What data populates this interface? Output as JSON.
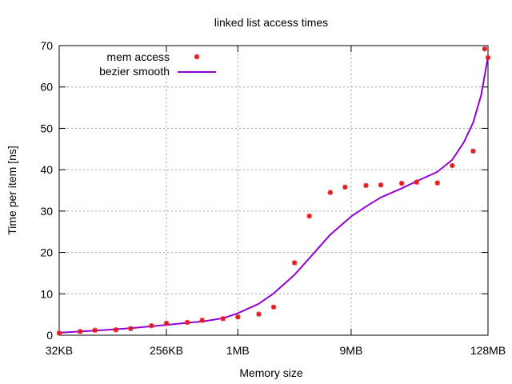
{
  "chart_data": {
    "type": "scatter",
    "title": "linked list access times",
    "xlabel": "Memory size",
    "ylabel": "Time per item [ns]",
    "x_scale": "log",
    "xlim": [
      32768,
      134217728
    ],
    "ylim": [
      0,
      70
    ],
    "xticks": [
      {
        "value": 32768,
        "label": "32KB"
      },
      {
        "value": 262144,
        "label": "256KB"
      },
      {
        "value": 1048576,
        "label": "1MB"
      },
      {
        "value": 9437184,
        "label": "9MB"
      },
      {
        "value": 134217728,
        "label": "128MB"
      }
    ],
    "yticks": [
      0,
      10,
      20,
      30,
      40,
      50,
      60,
      70
    ],
    "grid": true,
    "legend_position": "top-left",
    "series": [
      {
        "name": "mem access",
        "kind": "points",
        "color": "#e41a1c",
        "points": [
          [
            32768,
            0.5
          ],
          [
            49152,
            0.9
          ],
          [
            65536,
            1.2
          ],
          [
            98304,
            1.3
          ],
          [
            131072,
            1.6
          ],
          [
            196608,
            2.3
          ],
          [
            262144,
            2.9
          ],
          [
            393216,
            3.1
          ],
          [
            524288,
            3.6
          ],
          [
            786432,
            4.0
          ],
          [
            1048576,
            4.4
          ],
          [
            1572864,
            5.1
          ],
          [
            2097152,
            6.8
          ],
          [
            3145728,
            17.5
          ],
          [
            4194304,
            28.8
          ],
          [
            6291456,
            34.5
          ],
          [
            8388608,
            35.8
          ],
          [
            12582912,
            36.2
          ],
          [
            16777216,
            36.3
          ],
          [
            25165824,
            36.7
          ],
          [
            33554432,
            37.0
          ],
          [
            50331648,
            36.8
          ],
          [
            67108864,
            41.0
          ],
          [
            100663296,
            44.5
          ],
          [
            125829120,
            69.2
          ],
          [
            134217728,
            67.1
          ]
        ]
      },
      {
        "name": "bezier smooth",
        "kind": "line",
        "color": "#9400d3",
        "points": [
          [
            32768,
            0.6
          ],
          [
            65536,
            1.1
          ],
          [
            131072,
            1.7
          ],
          [
            262144,
            2.5
          ],
          [
            393216,
            3.0
          ],
          [
            524288,
            3.3
          ],
          [
            786432,
            4.1
          ],
          [
            1048576,
            5.3
          ],
          [
            1572864,
            7.6
          ],
          [
            2097152,
            10.1
          ],
          [
            3145728,
            14.6
          ],
          [
            4194304,
            18.6
          ],
          [
            6291456,
            24.3
          ],
          [
            9437184,
            28.7
          ],
          [
            12582912,
            31.1
          ],
          [
            16777216,
            33.3
          ],
          [
            25165824,
            35.5
          ],
          [
            33554432,
            37.2
          ],
          [
            50331648,
            39.5
          ],
          [
            67108864,
            42.4
          ],
          [
            83886080,
            46.6
          ],
          [
            100663296,
            51.4
          ],
          [
            117440512,
            58.0
          ],
          [
            134217728,
            67.3
          ]
        ]
      }
    ]
  }
}
